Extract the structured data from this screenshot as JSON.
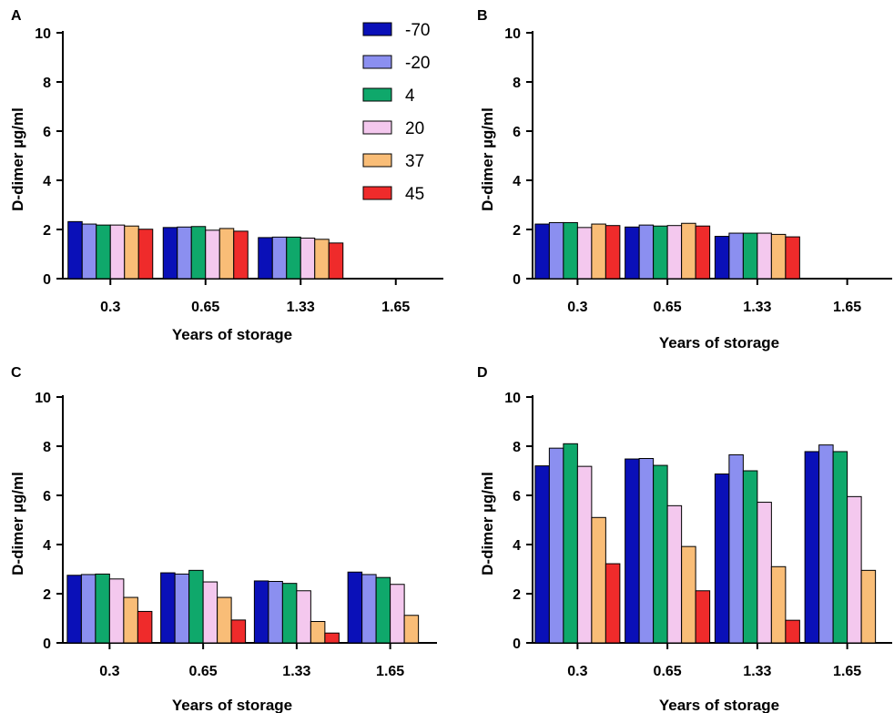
{
  "figure": {
    "legend": {
      "entries": [
        "-70",
        "-20",
        "4",
        "20",
        "37",
        "45"
      ],
      "colors": [
        "#0a10b8",
        "#8b8ff0",
        "#0fa86b",
        "#f4c8ee",
        "#f9bd77",
        "#ef2b2b"
      ]
    }
  },
  "chart_data": [
    {
      "panel": "A",
      "type": "bar",
      "categories": [
        "0.3",
        "0.65",
        "1.33",
        "1.65"
      ],
      "xlabel": "Years of storage",
      "ylabel": "D-dimer µg/ml",
      "ylim": [
        0,
        10
      ],
      "yticks": [
        "0",
        "2",
        "4",
        "6",
        "8",
        "10"
      ],
      "legend_position": "top-right",
      "series": [
        {
          "name": "-70",
          "values": [
            2.32,
            2.08,
            1.67,
            null
          ]
        },
        {
          "name": "-20",
          "values": [
            2.22,
            2.1,
            1.69,
            null
          ]
        },
        {
          "name": "4",
          "values": [
            2.18,
            2.12,
            1.69,
            null
          ]
        },
        {
          "name": "20",
          "values": [
            2.18,
            1.97,
            1.65,
            null
          ]
        },
        {
          "name": "37",
          "values": [
            2.14,
            2.04,
            1.6,
            null
          ]
        },
        {
          "name": "45",
          "values": [
            2.01,
            1.93,
            1.45,
            null
          ]
        }
      ]
    },
    {
      "panel": "B",
      "type": "bar",
      "categories": [
        "0.3",
        "0.65",
        "1.33",
        "1.65"
      ],
      "xlabel": "Years of storage",
      "ylabel": "D-dimer µg/ml",
      "ylim": [
        0,
        10
      ],
      "yticks": [
        "0",
        "2",
        "4",
        "6",
        "8",
        "10"
      ],
      "series": [
        {
          "name": "-70",
          "values": [
            2.22,
            2.1,
            1.72,
            null
          ]
        },
        {
          "name": "-20",
          "values": [
            2.28,
            2.18,
            1.85,
            null
          ]
        },
        {
          "name": "4",
          "values": [
            2.28,
            2.14,
            1.85,
            null
          ]
        },
        {
          "name": "20",
          "values": [
            2.08,
            2.16,
            1.85,
            null
          ]
        },
        {
          "name": "37",
          "values": [
            2.22,
            2.25,
            1.8,
            null
          ]
        },
        {
          "name": "45",
          "values": [
            2.16,
            2.14,
            1.7,
            null
          ]
        }
      ]
    },
    {
      "panel": "C",
      "type": "bar",
      "categories": [
        "0.3",
        "0.65",
        "1.33",
        "1.65"
      ],
      "xlabel": "Years of storage",
      "ylabel": "D-dimer µg/ml",
      "ylim": [
        0,
        10
      ],
      "yticks": [
        "0",
        "2",
        "4",
        "6",
        "8",
        "10"
      ],
      "series": [
        {
          "name": "-70",
          "values": [
            2.75,
            2.85,
            2.52,
            2.88
          ]
        },
        {
          "name": "-20",
          "values": [
            2.78,
            2.8,
            2.5,
            2.78
          ]
        },
        {
          "name": "4",
          "values": [
            2.8,
            2.95,
            2.42,
            2.66
          ]
        },
        {
          "name": "20",
          "values": [
            2.6,
            2.48,
            2.12,
            2.38
          ]
        },
        {
          "name": "37",
          "values": [
            1.85,
            1.85,
            0.87,
            1.12
          ]
        },
        {
          "name": "45",
          "values": [
            1.28,
            0.93,
            0.4,
            null
          ]
        }
      ]
    },
    {
      "panel": "D",
      "type": "bar",
      "categories": [
        "0.3",
        "0.65",
        "1.33",
        "1.65"
      ],
      "xlabel": "Years of storage",
      "ylabel": "D-dimer µg/ml",
      "ylim": [
        0,
        10
      ],
      "yticks": [
        "0",
        "2",
        "4",
        "6",
        "8",
        "10"
      ],
      "series": [
        {
          "name": "-70",
          "values": [
            7.2,
            7.48,
            6.87,
            7.78
          ]
        },
        {
          "name": "-20",
          "values": [
            7.92,
            7.5,
            7.65,
            8.05
          ]
        },
        {
          "name": "4",
          "values": [
            8.1,
            7.22,
            7.0,
            7.78
          ]
        },
        {
          "name": "20",
          "values": [
            7.18,
            5.58,
            5.72,
            5.95
          ]
        },
        {
          "name": "37",
          "values": [
            5.1,
            3.92,
            3.1,
            2.95
          ]
        },
        {
          "name": "45",
          "values": [
            3.22,
            2.12,
            0.92,
            null
          ]
        }
      ]
    }
  ]
}
